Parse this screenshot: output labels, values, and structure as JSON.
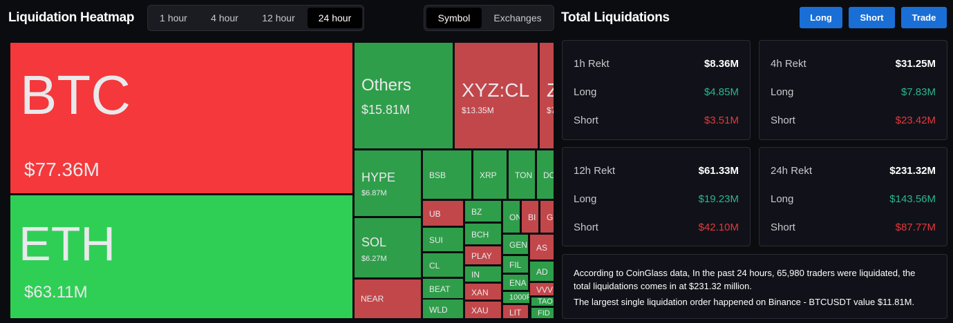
{
  "header": {
    "title": "Liquidation Heatmap",
    "time_tabs": [
      "1 hour",
      "4 hour",
      "12 hour",
      "24 hour"
    ],
    "view_tabs": [
      "Symbol",
      "Exchanges"
    ]
  },
  "heatmap": {
    "tiles": [
      {
        "label": "BTC",
        "value": "$77.36M"
      },
      {
        "label": "ETH",
        "value": "$63.11M"
      },
      {
        "label": "Others",
        "value": "$15.81M"
      },
      {
        "label": "XYZ:CL",
        "value": "$13.35M"
      },
      {
        "label": "Z",
        "value": "$7"
      },
      {
        "label": "HYPE",
        "value": "$6.87M"
      },
      {
        "label": "SOL",
        "value": "$6.27M"
      },
      {
        "label": "NEAR"
      },
      {
        "label": "BSB"
      },
      {
        "label": "XRP"
      },
      {
        "label": "TON"
      },
      {
        "label": "DO"
      },
      {
        "label": "UB"
      },
      {
        "label": "SUI"
      },
      {
        "label": "CL"
      },
      {
        "label": "BEAT"
      },
      {
        "label": "WLD"
      },
      {
        "label": "BZ"
      },
      {
        "label": "BCH"
      },
      {
        "label": "PLAY"
      },
      {
        "label": "IN"
      },
      {
        "label": "XAN"
      },
      {
        "label": "XAU"
      },
      {
        "label": "ON"
      },
      {
        "label": "BI"
      },
      {
        "label": "GF"
      },
      {
        "label": "GENI"
      },
      {
        "label": "AS"
      },
      {
        "label": "FIL"
      },
      {
        "label": "AD"
      },
      {
        "label": "ENA"
      },
      {
        "label": "VVV"
      },
      {
        "label": "1000F"
      },
      {
        "label": "TAO"
      },
      {
        "label": "LIT"
      },
      {
        "label": "FID"
      }
    ]
  },
  "summary": {
    "title": "Total Liquidations",
    "buttons": [
      "Long",
      "Short",
      "Trade"
    ],
    "cards": [
      {
        "title": "1h Rekt",
        "total": "$8.36M",
        "rows": [
          {
            "label": "Long",
            "value": "$4.85M"
          },
          {
            "label": "Short",
            "value": "$3.51M"
          }
        ]
      },
      {
        "title": "4h Rekt",
        "total": "$31.25M",
        "rows": [
          {
            "label": "Long",
            "value": "$7.83M"
          },
          {
            "label": "Short",
            "value": "$23.42M"
          }
        ]
      },
      {
        "title": "12h Rekt",
        "total": "$61.33M",
        "rows": [
          {
            "label": "Long",
            "value": "$19.23M"
          },
          {
            "label": "Short",
            "value": "$42.10M"
          }
        ]
      },
      {
        "title": "24h Rekt",
        "total": "$231.32M",
        "rows": [
          {
            "label": "Long",
            "value": "$143.56M"
          },
          {
            "label": "Short",
            "value": "$87.77M"
          }
        ]
      }
    ],
    "note": [
      "According to CoinGlass data, In the past 24 hours, 65,980 traders were liquidated, the total liquidations comes in at $231.32 million.",
      "The largest single liquidation order happened on Binance - BTCUSDT value $11.81M."
    ]
  }
}
